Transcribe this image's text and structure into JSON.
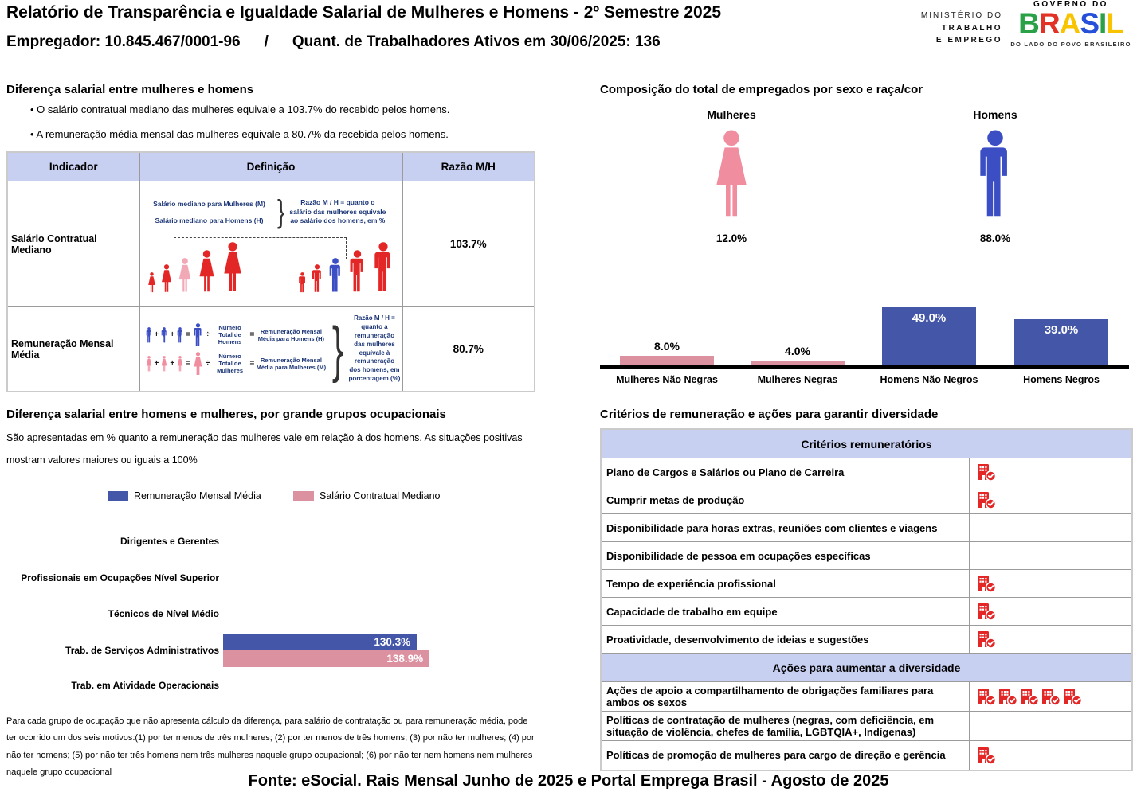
{
  "header": {
    "title": "Relatório de Transparência e Igualdade Salarial de Mulheres e Homens - 2º Semestre 2025",
    "employer": "Empregador: 10.845.467/0001-96",
    "separator": "/",
    "workers": "Quant. de Trabalhadores Ativos em 30/06/2025: 136",
    "ministry": [
      "MINISTÉRIO DO",
      "TRABALHO",
      "E EMPREGO"
    ],
    "gov": {
      "top": "GOVERNO DO",
      "name": "BRASIL",
      "letter_colors": [
        "#2aa146",
        "#e23125",
        "#f8c300",
        "#2750d8",
        "#2aa146",
        "#f8c300"
      ],
      "tagline": "DO LADO DO POVO BRASILEIRO"
    }
  },
  "salary_gap": {
    "title": "Diferença salarial entre mulheres e homens",
    "bullets": [
      "O salário contratual mediano das mulheres equivale a 103.7% do recebido pelos homens.",
      "A remuneração média mensal das mulheres equivale a 80.7% da recebida pelos homens."
    ],
    "table": {
      "headers": [
        "Indicador",
        "Definição",
        "Razão M/H"
      ],
      "rows": [
        {
          "indicator": "Salário Contratual Mediano",
          "ratio": "103.7%"
        },
        {
          "indicator": "Remuneração Mensal Média",
          "ratio": "80.7%"
        }
      ]
    },
    "diagram_median": {
      "label_women": "Salário mediano para Mulheres (M)",
      "label_men": "Salário mediano para Homens (H)",
      "note": "Razão M / H = quanto o salário das mulheres equivale ao salário dos homens, em %"
    },
    "diagram_mean": {
      "divisor_men": "Número Total de Homens",
      "result_men": "Remuneração Mensal Média para Homens (H)",
      "divisor_women": "Número Total de Mulheres",
      "result_women": "Remuneração Mensal Média para Mulheres (M)",
      "note": "Razão M / H = quanto a remuneração das mulheres equivale à remuneração dos homens, em porcentagem (%)"
    }
  },
  "composition": {
    "title": "Composição do total de empregados por sexo e raça/cor",
    "female_label": "Mulheres",
    "male_label": "Homens",
    "female_pct": "12.0%",
    "male_pct": "88.0%",
    "bar_labels": [
      "8.0%",
      "4.0%",
      "49.0%",
      "39.0%"
    ]
  },
  "occupational": {
    "title": "Diferença salarial entre homens e mulheres, por grande grupos ocupacionais",
    "subtitle_line1": "São apresentadas em % quanto a remuneração das mulheres vale em relação à dos homens. As situações positivas",
    "subtitle_line2": "mostram valores maiores ou iguais a 100%",
    "bar_labels": [
      "130.3%",
      "138.9%"
    ],
    "footnote": "Para cada grupo de ocupação que não apresenta cálculo da diferença, para salário de contratação ou para remuneração média, pode ter ocorrido um dos seis motivos:(1) por ter menos de três mulheres; (2) por ter menos de três homens; (3) por não ter mulheres; (4) por não ter homens; (5) por não ter três homens nem três mulheres naquele grupo ocupacional; (6) por não ter nem homens nem mulheres naquele grupo ocupacional"
  },
  "criteria": {
    "title": "Critérios de remuneração e ações para garantir diversidade",
    "remuneration": {
      "header": "Critérios remuneratórios",
      "rows": [
        {
          "label": "Plano de Cargos e Salários ou Plano de Carreira",
          "icons": 1
        },
        {
          "label": "Cumprir metas de produção",
          "icons": 1
        },
        {
          "label": "Disponibilidade para horas extras, reuniões com clientes e viagens",
          "icons": 0
        },
        {
          "label": "Disponibilidade de pessoa em ocupações específicas",
          "icons": 0
        },
        {
          "label": "Tempo de experiência profissional",
          "icons": 1
        },
        {
          "label": "Capacidade de trabalho em equipe",
          "icons": 1
        },
        {
          "label": "Proatividade, desenvolvimento de ideias e sugestões",
          "icons": 1
        }
      ]
    },
    "diversity": {
      "header": "Ações para aumentar a diversidade",
      "rows": [
        {
          "label": "Ações de apoio a compartilhamento de obrigações familiares para ambos os sexos",
          "icons": 5
        },
        {
          "label": "Políticas de contratação de mulheres (negras, com deficiência, em situação de violência, chefes de família, LGBTQIA+, Indígenas)",
          "icons": 0
        },
        {
          "label": "Políticas de promoção de mulheres para cargo de direção e gerência",
          "icons": 1
        }
      ]
    }
  },
  "footer": {
    "source": "Fonte: eSocial. Rais Mensal Junho de 2025 e Portal Emprega Brasil - Agosto de 2025"
  },
  "colors": {
    "bar_blue": "#4356a8",
    "bar_pink": "#dc91a1",
    "figure_red": "#e32726",
    "figure_light_pink": "#f2a9b6",
    "figure_blue": "#3b4ec4",
    "figure_pink": "#f08ea0",
    "table_header_bg": "#c8d0f2",
    "status_icon_red": "#e32726"
  },
  "chart_data": [
    {
      "type": "bar",
      "title": "Composição do total de empregados por sexo e raça/cor",
      "categories": [
        "Mulheres Não Negras",
        "Mulheres Negras",
        "Homens Não Negros",
        "Homens Negros"
      ],
      "values": [
        8.0,
        4.0,
        49.0,
        39.0
      ],
      "unit": "%",
      "bar_colors": [
        "#dc91a1",
        "#dc91a1",
        "#4356a8",
        "#4356a8"
      ],
      "gender_totals": {
        "Mulheres": 12.0,
        "Homens": 88.0
      },
      "xlabel": "",
      "ylabel": "",
      "grid": false,
      "legend": false
    },
    {
      "type": "bar",
      "orientation": "horizontal",
      "title": "Diferença salarial entre homens e mulheres, por grande grupos ocupacionais",
      "categories": [
        "Dirigentes e Gerentes",
        "Profissionais em Ocupações Nível Superior",
        "Técnicos de Nível Médio",
        "Trab. de Serviços Administrativos",
        "Trab. em Atividade Operacionais"
      ],
      "series": [
        {
          "name": "Remuneração Mensal Média",
          "color": "#4356a8",
          "values": [
            null,
            null,
            null,
            130.3,
            null
          ]
        },
        {
          "name": "Salário Contratual Mediano",
          "color": "#dc91a1",
          "values": [
            null,
            null,
            null,
            138.9,
            null
          ]
        }
      ],
      "unit": "%",
      "legend_position": "top",
      "grid": false
    }
  ]
}
